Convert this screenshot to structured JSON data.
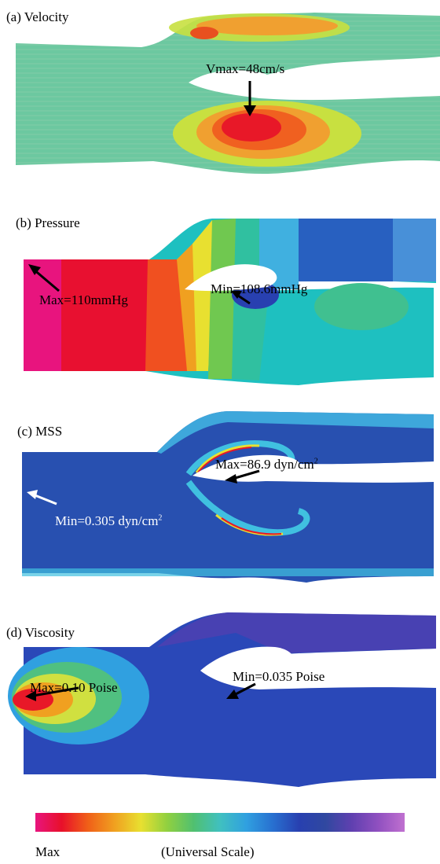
{
  "panels": [
    {
      "title": "(a) Velocity",
      "annotation": "Vmax=48cm/s"
    },
    {
      "title": "(b) Pressure",
      "annotations": [
        "Max=110mmHg",
        "Min=108.6mmHg"
      ]
    },
    {
      "title": "(c) MSS",
      "annotations": [
        {
          "prefix": "Max=86.9 dyn/cm",
          "sup": "2"
        },
        {
          "prefix": "Min=0.305 dyn/cm",
          "sup": "2"
        }
      ]
    },
    {
      "title": "(d) Viscosity",
      "annotations": [
        "Max=0.10 Poise",
        "Min=0.035 Poise"
      ]
    }
  ],
  "scale": {
    "label_max": "Max",
    "label_center": "(Universal Scale)",
    "colors": [
      "#e8147e",
      "#e8102a",
      "#f06018",
      "#f0a020",
      "#e8e030",
      "#90d040",
      "#50c070",
      "#40c0c0",
      "#30a0e0",
      "#2870d0",
      "#2840b0",
      "#3048a0",
      "#6040b0",
      "#9050c0",
      "#c070d0"
    ]
  }
}
